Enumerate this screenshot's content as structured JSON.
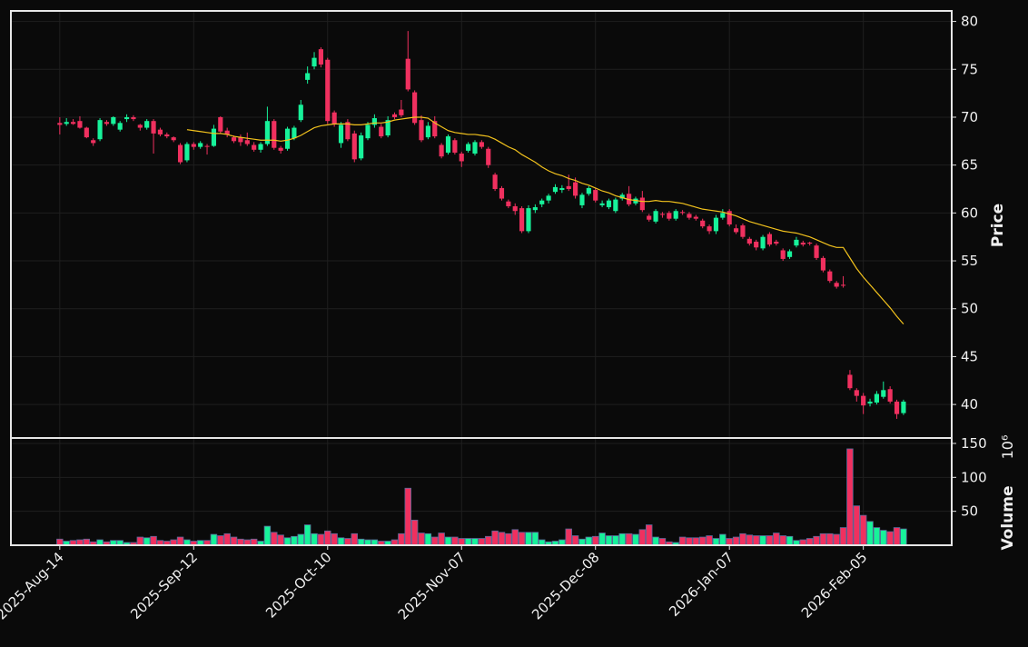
{
  "chart_data": {
    "type": "candlestick",
    "categories": [
      "2025-Aug-14",
      null,
      null,
      null,
      null,
      null,
      null,
      null,
      null,
      null,
      null,
      null,
      null,
      null,
      null,
      null,
      null,
      null,
      null,
      null,
      "2025-Sep-12",
      null,
      null,
      null,
      null,
      null,
      null,
      null,
      null,
      null,
      null,
      null,
      null,
      null,
      null,
      null,
      null,
      null,
      null,
      null,
      "2025-Oct-10",
      null,
      null,
      null,
      null,
      null,
      null,
      null,
      null,
      null,
      null,
      null,
      null,
      null,
      null,
      null,
      null,
      null,
      null,
      null,
      "2025-Nov-07",
      null,
      null,
      null,
      null,
      null,
      null,
      null,
      null,
      null,
      null,
      null,
      null,
      null,
      null,
      null,
      null,
      null,
      null,
      null,
      "2025-Dec-08",
      null,
      null,
      null,
      null,
      null,
      null,
      null,
      null,
      null,
      null,
      null,
      null,
      null,
      null,
      null,
      null,
      null,
      null,
      null,
      "2026-Jan-07",
      null,
      null,
      null,
      null,
      null,
      null,
      null,
      null,
      null,
      null,
      null,
      null,
      null,
      null,
      null,
      null,
      null,
      null,
      null,
      "2026-Feb-05",
      null,
      null,
      null,
      null,
      null,
      null
    ],
    "open": [
      69.4,
      69.3,
      69.5,
      69.6,
      68.9,
      67.6,
      67.7,
      69.5,
      69.3,
      68.7,
      69.8,
      70.0,
      69.2,
      68.9,
      69.6,
      68.7,
      68.2,
      67.9,
      67.1,
      65.5,
      67.2,
      66.9,
      67.0,
      67.0,
      70.0,
      68.6,
      67.9,
      67.9,
      67.6,
      67.1,
      66.6,
      67.2,
      69.6,
      66.8,
      66.7,
      67.8,
      69.7,
      73.9,
      75.3,
      77.1,
      76.0,
      70.5,
      67.3,
      69.5,
      68.3,
      65.7,
      67.8,
      69.2,
      69.0,
      68.1,
      70.3,
      70.8,
      76.1,
      72.6,
      69.7,
      67.9,
      69.6,
      67.1,
      66.3,
      67.6,
      66.2,
      66.5,
      66.2,
      67.4,
      66.7,
      64.0,
      62.6,
      61.2,
      60.7,
      60.5,
      58.1,
      60.3,
      60.9,
      61.3,
      62.2,
      62.4,
      62.8,
      63.2,
      60.8,
      62.0,
      62.4,
      60.8,
      60.6,
      60.2,
      61.5,
      62.0,
      61.0,
      61.6,
      59.7,
      59.1,
      59.9,
      60.0,
      59.4,
      60.1,
      59.9,
      59.6,
      59.2,
      58.6,
      58.1,
      59.5,
      60.2,
      58.4,
      58.7,
      57.3,
      57.0,
      56.3,
      57.8,
      57.0,
      56.1,
      55.4,
      56.6,
      56.9,
      56.9,
      56.6,
      55.3,
      53.9,
      52.7,
      52.5,
      43.1,
      41.5,
      40.9,
      40.1,
      40.2,
      40.8,
      41.6,
      40.3,
      39.1
    ],
    "high": [
      70.0,
      69.9,
      69.8,
      70.1,
      69.0,
      67.8,
      69.9,
      69.7,
      70.1,
      69.6,
      70.3,
      70.2,
      69.3,
      69.8,
      69.8,
      68.9,
      68.4,
      68.0,
      67.3,
      67.4,
      67.4,
      67.5,
      67.2,
      69.2,
      70.1,
      68.9,
      68.1,
      68.2,
      68.4,
      67.4,
      67.4,
      71.1,
      69.8,
      67.0,
      69.0,
      69.1,
      71.8,
      75.3,
      76.8,
      77.3,
      76.2,
      70.7,
      69.5,
      69.8,
      68.6,
      68.4,
      69.5,
      70.3,
      69.3,
      70.1,
      70.5,
      71.8,
      79.0,
      72.8,
      70.2,
      69.5,
      70.1,
      67.3,
      68.2,
      67.8,
      66.4,
      67.4,
      67.6,
      67.6,
      66.9,
      64.2,
      62.8,
      61.4,
      61.0,
      60.7,
      60.8,
      60.9,
      61.5,
      62.0,
      63.0,
      62.9,
      64.0,
      63.7,
      62.1,
      62.8,
      62.6,
      61.3,
      61.5,
      61.6,
      62.1,
      62.8,
      61.7,
      62.3,
      59.9,
      60.4,
      60.1,
      60.2,
      60.4,
      60.3,
      60.1,
      59.8,
      59.4,
      58.8,
      59.8,
      60.4,
      60.4,
      58.8,
      58.9,
      57.5,
      57.2,
      57.7,
      58.0,
      57.2,
      56.3,
      56.2,
      57.5,
      57.1,
      57.0,
      56.8,
      55.5,
      54.1,
      52.9,
      53.4,
      43.6,
      41.7,
      41.2,
      40.6,
      41.4,
      42.4,
      41.9,
      40.5,
      40.5
    ],
    "low": [
      68.2,
      69.1,
      69.2,
      68.8,
      67.8,
      67.0,
      67.5,
      69.1,
      69.1,
      68.5,
      69.5,
      69.6,
      68.6,
      68.7,
      66.2,
      68.0,
      67.8,
      67.4,
      65.1,
      65.3,
      66.6,
      66.7,
      66.1,
      66.9,
      68.3,
      67.9,
      67.3,
      67.0,
      67.0,
      66.4,
      66.3,
      67.0,
      66.6,
      66.2,
      66.5,
      67.6,
      69.5,
      73.5,
      75.0,
      75.2,
      69.3,
      69.0,
      66.8,
      67.5,
      65.3,
      65.5,
      67.6,
      68.9,
      67.8,
      67.9,
      69.8,
      70.0,
      72.7,
      69.2,
      67.4,
      67.7,
      67.8,
      65.7,
      66.1,
      66.1,
      64.8,
      66.3,
      66.0,
      66.7,
      64.7,
      62.3,
      61.3,
      60.5,
      59.8,
      57.9,
      57.9,
      60.0,
      60.6,
      61.0,
      62.0,
      62.1,
      62.3,
      61.5,
      60.5,
      61.8,
      61.1,
      60.6,
      60.4,
      60.0,
      61.3,
      60.7,
      60.8,
      60.1,
      59.1,
      58.9,
      59.5,
      59.2,
      59.2,
      59.8,
      59.3,
      59.2,
      58.4,
      57.8,
      57.8,
      59.3,
      58.6,
      57.8,
      57.3,
      56.6,
      56.1,
      56.1,
      56.5,
      56.6,
      55.0,
      55.2,
      56.4,
      56.5,
      56.6,
      55.1,
      53.8,
      52.7,
      52.1,
      52.2,
      41.5,
      40.3,
      39.0,
      39.8,
      40.0,
      40.6,
      40.1,
      38.5,
      38.9
    ],
    "close": [
      69.2,
      69.5,
      69.3,
      68.9,
      67.9,
      67.3,
      69.7,
      69.3,
      70.0,
      69.4,
      70.0,
      69.8,
      68.9,
      69.6,
      68.3,
      68.2,
      68.0,
      67.6,
      65.3,
      67.2,
      66.9,
      67.3,
      66.9,
      68.8,
      68.5,
      68.2,
      67.5,
      67.4,
      67.2,
      66.6,
      67.2,
      69.6,
      66.8,
      66.5,
      68.8,
      68.9,
      71.3,
      74.6,
      76.2,
      75.5,
      69.6,
      69.3,
      69.2,
      67.7,
      65.6,
      68.1,
      69.2,
      69.9,
      68.0,
      69.7,
      70.0,
      70.2,
      72.9,
      69.4,
      67.6,
      69.1,
      68.0,
      65.9,
      68.0,
      66.3,
      65.4,
      67.2,
      67.4,
      66.9,
      65.0,
      62.5,
      61.5,
      60.7,
      60.2,
      58.1,
      60.5,
      60.6,
      61.3,
      61.8,
      62.7,
      62.6,
      62.5,
      61.8,
      61.9,
      62.6,
      61.3,
      61.0,
      61.3,
      61.4,
      61.9,
      60.9,
      61.5,
      60.3,
      59.3,
      60.2,
      59.8,
      59.4,
      60.2,
      60.0,
      59.5,
      59.4,
      58.6,
      58.1,
      59.5,
      60.0,
      58.8,
      58.0,
      57.5,
      56.8,
      56.4,
      57.5,
      56.7,
      56.8,
      55.2,
      56.0,
      57.2,
      56.7,
      56.8,
      55.3,
      54.0,
      52.9,
      52.3,
      52.4,
      41.7,
      40.9,
      39.9,
      40.3,
      41.1,
      41.5,
      40.3,
      39.0,
      40.3
    ],
    "volume": [
      9,
      6,
      7,
      8,
      9,
      5,
      8,
      5,
      7,
      7,
      4,
      4,
      12,
      11,
      13,
      7,
      6,
      8,
      12,
      8,
      6,
      7,
      7,
      16,
      14,
      17,
      12,
      9,
      8,
      9,
      6,
      28,
      19,
      15,
      11,
      13,
      16,
      30,
      17,
      16,
      21,
      17,
      11,
      10,
      17,
      9,
      8,
      8,
      6,
      6,
      8,
      17,
      84,
      37,
      18,
      17,
      12,
      18,
      12,
      12,
      10,
      10,
      10,
      10,
      13,
      21,
      19,
      17,
      23,
      19,
      19,
      19,
      8,
      5,
      6,
      8,
      24,
      14,
      9,
      12,
      13,
      18,
      14,
      14,
      17,
      17,
      16,
      23,
      30,
      12,
      10,
      5,
      4,
      12,
      11,
      11,
      12,
      14,
      10,
      16,
      10,
      12,
      17,
      15,
      14,
      14,
      14,
      18,
      14,
      13,
      7,
      8,
      10,
      13,
      17,
      17,
      16,
      26,
      142,
      58,
      44,
      35,
      26,
      22,
      20,
      26,
      24
    ],
    "mav": [
      null,
      null,
      null,
      null,
      null,
      null,
      null,
      null,
      null,
      null,
      null,
      null,
      null,
      null,
      null,
      null,
      null,
      null,
      null,
      68.7,
      68.6,
      68.5,
      68.4,
      68.3,
      68.3,
      68.2,
      68.0,
      67.9,
      67.8,
      67.7,
      67.6,
      67.6,
      67.6,
      67.5,
      67.6,
      67.8,
      68.1,
      68.5,
      68.9,
      69.1,
      69.2,
      69.3,
      69.3,
      69.3,
      69.2,
      69.2,
      69.3,
      69.4,
      69.4,
      69.5,
      69.7,
      69.8,
      69.9,
      70.0,
      70.0,
      69.9,
      69.4,
      69.0,
      68.6,
      68.4,
      68.3,
      68.2,
      68.2,
      68.1,
      68.0,
      67.7,
      67.3,
      66.9,
      66.6,
      66.1,
      65.7,
      65.3,
      64.8,
      64.4,
      64.1,
      63.9,
      63.6,
      63.4,
      63.1,
      62.9,
      62.6,
      62.3,
      62.1,
      61.8,
      61.6,
      61.4,
      61.3,
      61.2,
      61.2,
      61.3,
      61.2,
      61.2,
      61.1,
      61.0,
      60.8,
      60.6,
      60.4,
      60.3,
      60.2,
      60.1,
      59.9,
      59.7,
      59.4,
      59.1,
      58.9,
      58.7,
      58.5,
      58.3,
      58.1,
      58.0,
      57.9,
      57.7,
      57.5,
      57.2,
      56.9,
      56.6,
      56.4,
      56.4,
      55.3,
      54.2,
      53.3,
      52.5,
      51.7,
      50.9,
      50.1,
      49.2,
      48.4
    ],
    "xlim": [
      -7.3,
      133.2
    ],
    "ylim": [
      36.5,
      81.1
    ],
    "yticks": [
      40,
      45,
      50,
      55,
      60,
      65,
      70,
      75,
      80
    ],
    "volume_ylim": [
      0,
      158
    ],
    "volume_yticks": [
      50,
      100,
      150
    ],
    "ylabel": "Price",
    "volume_label": "Volume",
    "volume_offset": "10⁶",
    "grid": true,
    "up_color": "#17f29a",
    "down_color": "#f0305f",
    "ma_color": "#f2c21d"
  }
}
